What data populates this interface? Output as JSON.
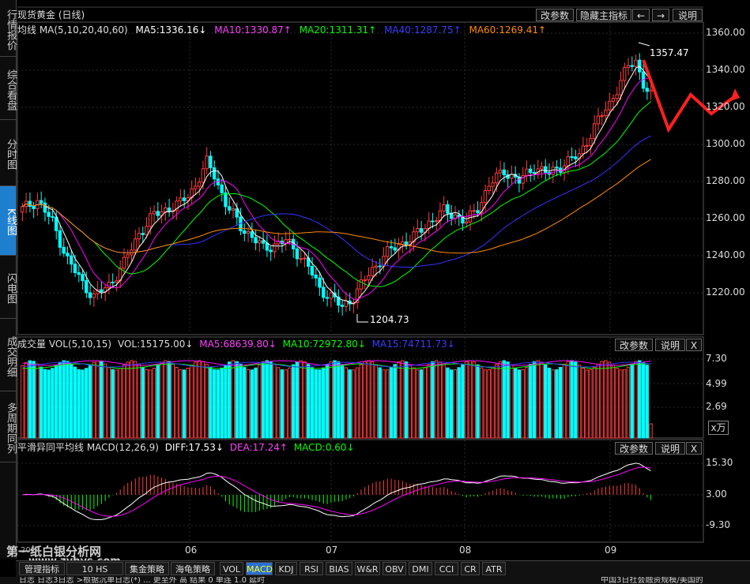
{
  "sidebar": {
    "items": [
      {
        "label": "行情报价"
      },
      {
        "label": "综合看盘"
      },
      {
        "label": "分时图"
      },
      {
        "label": "K线图"
      },
      {
        "label": "闪电图"
      },
      {
        "label": "成交明细"
      },
      {
        "label": "多周期同列"
      }
    ]
  },
  "header": {
    "title": "现货黄金 (日线)",
    "btn_params": "改参数",
    "btn_hide": "隐藏主指标",
    "btn_prev": "←",
    "btn_next": "→",
    "btn_help": "说明"
  },
  "ma": {
    "label": "均线 MA(5,10,20,40,60)",
    "ma5": "MA5:1336.16↓",
    "ma10": "MA10:1330.87↑",
    "ma20": "MA20:1311.31↑",
    "ma40": "MA40:1287.75↑",
    "ma60": "MA60:1269.41↑"
  },
  "price_axis": [
    "1360.00",
    "1340.00",
    "1320.00",
    "1300.00",
    "1280.00",
    "1260.00",
    "1240.00",
    "1220.00"
  ],
  "annotations": {
    "high": "1357.47",
    "low": "1204.73"
  },
  "volume": {
    "label": "成交量 VOL(5,10,15)",
    "vol": "VOL:15175.00↓",
    "ma5": "MA5:68639.80↓",
    "ma10": "MA10:72972.80↓",
    "ma15": "MA15:74711.73↓",
    "axis": [
      "7.30",
      "4.99",
      "2.69"
    ],
    "unit": "x万",
    "btn_params": "改参数",
    "btn_help": "说明",
    "btn_close": "X"
  },
  "macd": {
    "label": "平滑异同平均线 MACD(12,26,9)",
    "diff": "DIFF:17.53↓",
    "dea": "DEA:17.24↑",
    "macd": "MACD:0.60↓",
    "axis": [
      "15.30",
      "3.00",
      "-9.30"
    ],
    "btn_params": "改参数",
    "btn_help": "说明",
    "btn_close": "X"
  },
  "time_axis": [
    "06",
    "07",
    "08",
    "09"
  ],
  "bottom_tabs": [
    {
      "label": "管理指标"
    },
    {
      "label": "10 HS"
    },
    {
      "label": "集金策略"
    },
    {
      "label": "海龟策略"
    },
    {
      "label": "VOL"
    },
    {
      "label": "MACD",
      "active": true
    },
    {
      "label": "KDJ"
    },
    {
      "label": "RSI"
    },
    {
      "label": "BIAS"
    },
    {
      "label": "W&R"
    },
    {
      "label": "OBV"
    },
    {
      "label": "DMI"
    },
    {
      "label": "CCI"
    },
    {
      "label": "CR"
    },
    {
      "label": "ATR"
    }
  ],
  "watermark": {
    "line1": "第一纸白银分析网",
    "line2": "www.zybys.com",
    "year": "2014"
  },
  "status_text": "日志  日志3日志  >根据沉单日志(*)  ... 更至外  高    结果 0    单连  1.0    延时",
  "status_right": "中国3日社会融资规模/美国的",
  "colors": {
    "up": "#ff3b3b",
    "down": "#00ffff",
    "ma5": "#ffffff",
    "ma10": "#ff00ff",
    "ma20": "#00ff00",
    "ma40": "#3333ff",
    "ma60": "#ff8c00",
    "arrow": "#ff2020",
    "active_tab": "#2a6fd6"
  }
}
